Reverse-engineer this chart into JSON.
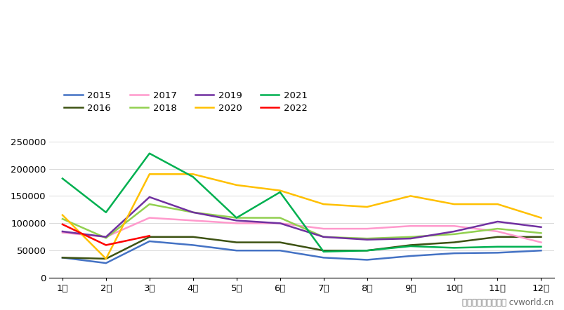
{
  "months": [
    "1月",
    "2月",
    "3月",
    "4月",
    "5月",
    "6月",
    "7月",
    "8月",
    "9月",
    "10月",
    "11月",
    "12月"
  ],
  "series_order": [
    "2015",
    "2016",
    "2017",
    "2018",
    "2019",
    "2020",
    "2021",
    "2022"
  ],
  "series": {
    "2015": [
      37000,
      27000,
      67000,
      60000,
      50000,
      50000,
      37000,
      33000,
      40000,
      45000,
      46000,
      50000
    ],
    "2016": [
      37000,
      35000,
      75000,
      75000,
      65000,
      65000,
      50000,
      50000,
      60000,
      65000,
      75000,
      75000
    ],
    "2017": [
      83000,
      75000,
      110000,
      105000,
      100000,
      100000,
      90000,
      90000,
      95000,
      95000,
      85000,
      65000
    ],
    "2018": [
      108000,
      73000,
      135000,
      120000,
      110000,
      110000,
      75000,
      72000,
      75000,
      80000,
      90000,
      82000
    ],
    "2019": [
      85000,
      75000,
      148000,
      120000,
      105000,
      100000,
      75000,
      70000,
      72000,
      85000,
      103000,
      93000
    ],
    "2020": [
      115000,
      35000,
      190000,
      190000,
      170000,
      160000,
      135000,
      130000,
      150000,
      135000,
      135000,
      110000
    ],
    "2021": [
      182000,
      120000,
      228000,
      185000,
      110000,
      157000,
      48000,
      50000,
      58000,
      55000,
      57000,
      57000
    ],
    "2022": [
      98000,
      60000,
      77000,
      null,
      null,
      null,
      null,
      null,
      null,
      null,
      null,
      null
    ]
  },
  "colors": {
    "2015": "#4472C4",
    "2016": "#3D5212",
    "2017": "#FF99CC",
    "2018": "#92D050",
    "2019": "#7030A0",
    "2020": "#FFC000",
    "2021": "#00B050",
    "2022": "#FF0000"
  },
  "ylim": [
    0,
    260000
  ],
  "yticks": [
    0,
    50000,
    100000,
    150000,
    200000,
    250000
  ],
  "footer": "制图：第一商用车网 cvworld.cn",
  "background_color": "#FFFFFF"
}
